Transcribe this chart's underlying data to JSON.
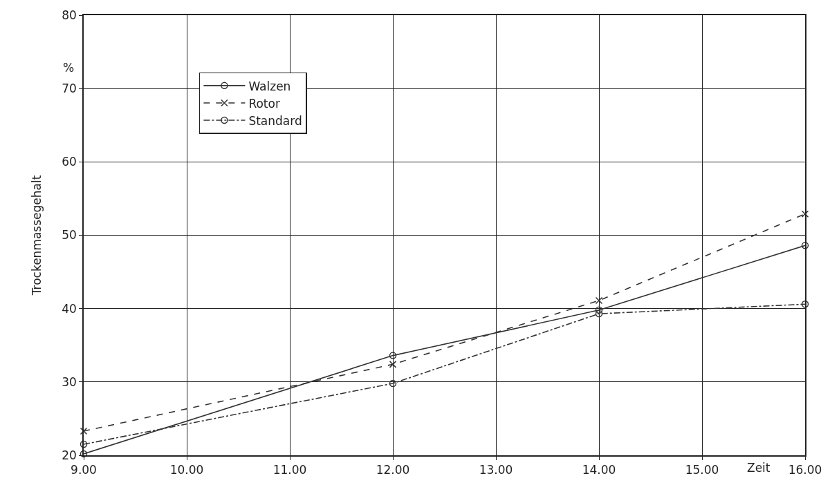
{
  "chart_data": {
    "type": "line",
    "xlabel": "Zeit",
    "ylabel": "Trockenmassegehalt",
    "annotations": [
      "%"
    ],
    "x": [
      9,
      12,
      14,
      16
    ],
    "series": [
      {
        "name": "Walzen",
        "color": "#333333",
        "values": [
          20.2,
          33.6,
          39.8,
          48.6
        ],
        "marker": "circle",
        "line_style": "solid"
      },
      {
        "name": "Rotor",
        "color": "#333333",
        "values": [
          23.3,
          32.4,
          41.1,
          52.9
        ],
        "marker": "cross",
        "line_style": "dashed"
      },
      {
        "name": "Standard",
        "color": "#333333",
        "values": [
          21.5,
          29.8,
          39.3,
          40.6
        ],
        "marker": "circle",
        "line_style": "dashdot"
      }
    ],
    "xlim": [
      9,
      16
    ],
    "xticks": [
      {
        "value": 9,
        "label": "9.00"
      },
      {
        "value": 10,
        "label": "10.00"
      },
      {
        "value": 11,
        "label": "11.00"
      },
      {
        "value": 12,
        "label": "12.00"
      },
      {
        "value": 13,
        "label": "13.00"
      },
      {
        "value": 14,
        "label": "14.00"
      },
      {
        "value": 15,
        "label": "15.00"
      },
      {
        "value": 16,
        "label": "16.00"
      }
    ],
    "ylim": [
      20,
      80
    ],
    "yticks": [
      20,
      30,
      40,
      50,
      60,
      70,
      80
    ],
    "grid": true,
    "legend": "top left"
  }
}
